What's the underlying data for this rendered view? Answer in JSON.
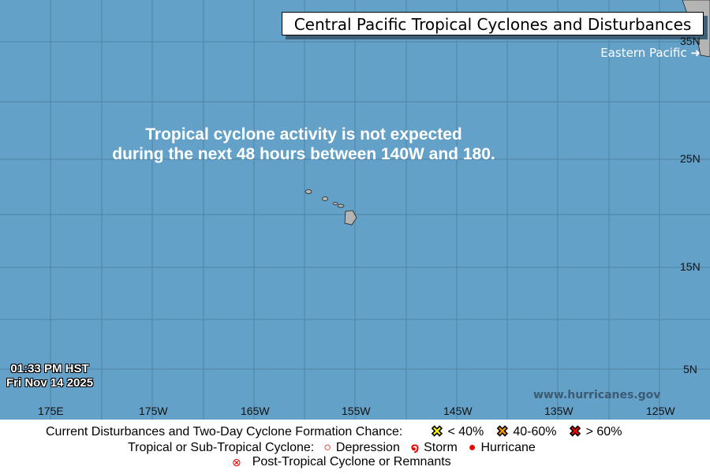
{
  "title": "Central Pacific Tropical Cyclones and Disturbances",
  "eastern_pacific_link": "Eastern Pacific ➜",
  "message_line1": "Tropical cyclone activity is not expected",
  "message_line2": "during the next 48 hours between 140W and 180.",
  "time": "01:33 PM HST",
  "date": "Fri Nov 14 2025",
  "website": "www.hurricanes.gov",
  "lon_labels": [
    "175E",
    "175W",
    "165W",
    "155W",
    "145W",
    "135W",
    "125W"
  ],
  "lat_labels": [
    "35N",
    "25N",
    "15N",
    "5N"
  ],
  "colors": {
    "ocean": "#63a1c9",
    "land": "#b4b4b4",
    "low": "#ffff00",
    "medium": "#ff9900",
    "high": "#ff0000"
  },
  "legend": {
    "disturbances_label": "Current Disturbances and Two-Day Cyclone Formation Chance:",
    "low": "< 40%",
    "medium": "40-60%",
    "high": "> 60%",
    "cyclone_label": "Tropical or Sub-Tropical Cyclone:",
    "depression": "Depression",
    "storm": "Storm",
    "hurricane": "Hurricane",
    "post_tropical": "Post-Tropical Cyclone or Remnants"
  }
}
